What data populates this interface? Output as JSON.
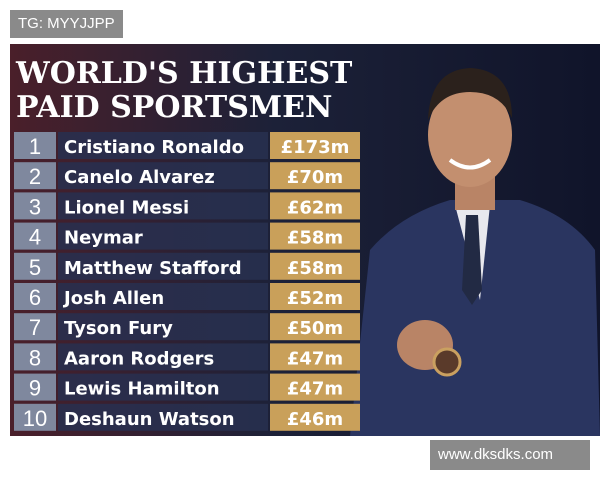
{
  "watermark_top": "TG: MYYJJPP",
  "header": {
    "title_line1": "WORLD'S HIGHEST",
    "title_line2": "PAID SPORTSMEN"
  },
  "table": {
    "rows": [
      {
        "rank": 1,
        "name": "Cristiano Ronaldo",
        "earnings": "£173m"
      },
      {
        "rank": 2,
        "name": "Canelo Alvarez",
        "earnings": "£70m"
      },
      {
        "rank": 3,
        "name": "Lionel Messi",
        "earnings": "£62m"
      },
      {
        "rank": 4,
        "name": "Neymar",
        "earnings": "£58m"
      },
      {
        "rank": 5,
        "name": "Matthew Stafford",
        "earnings": "£58m"
      },
      {
        "rank": 6,
        "name": "Josh Allen",
        "earnings": "£52m"
      },
      {
        "rank": 7,
        "name": "Tyson Fury",
        "earnings": "£50m"
      },
      {
        "rank": 8,
        "name": "Aaron Rodgers",
        "earnings": "£47m"
      },
      {
        "rank": 9,
        "name": "Lewis Hamilton",
        "earnings": "£47m"
      },
      {
        "rank": 10,
        "name": "Deshaun Watson",
        "earnings": "£46m"
      }
    ]
  },
  "watermark_bottom": "www.dksdks.com"
}
